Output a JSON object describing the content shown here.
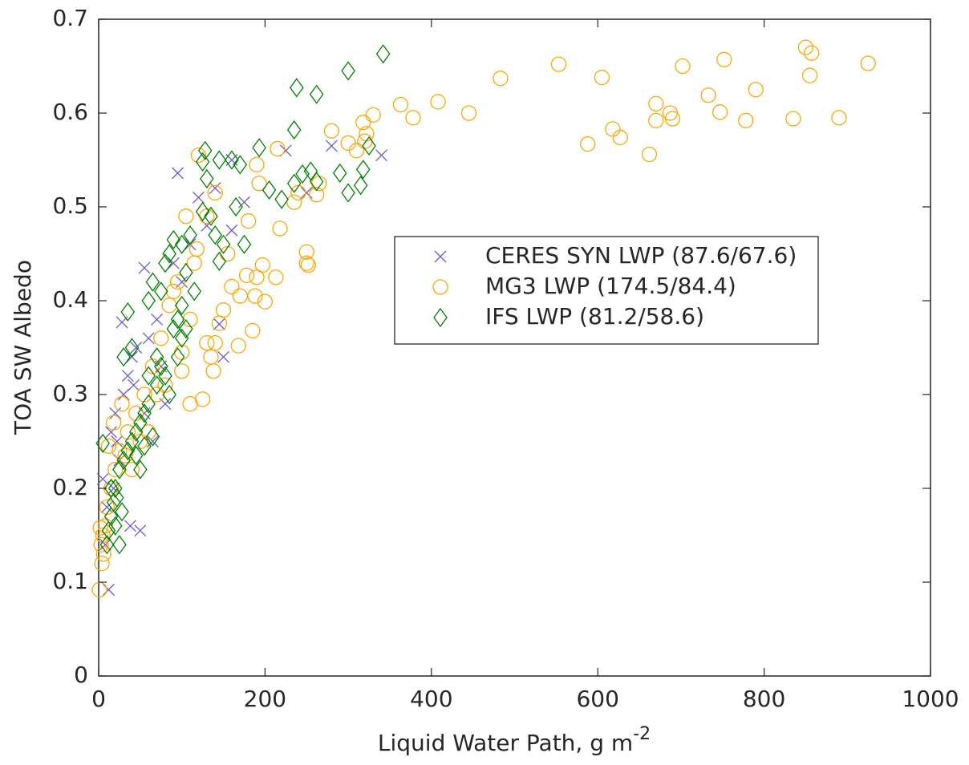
{
  "chart_data": {
    "type": "scatter",
    "xlabel": "Liquid Water Path, g m",
    "xlabel_superscript": "-2",
    "ylabel": "TOA SW Albedo",
    "xlim": [
      0,
      1000
    ],
    "xticks": [
      0,
      200,
      400,
      600,
      800,
      1000
    ],
    "ylim": [
      0,
      0.7
    ],
    "yticks": [
      0,
      0.1,
      0.2,
      0.3,
      0.4,
      0.5,
      0.6,
      0.7
    ],
    "grid": false,
    "legend": "upper right",
    "series": [
      {
        "name": "CERES SYN LWP (87.6/67.6)",
        "color": "#6a5acd",
        "marker": "x",
        "x": [
          95,
          120,
          130,
          140,
          160,
          175,
          225,
          280,
          340,
          250,
          145,
          160,
          150,
          55,
          28,
          40,
          50,
          12,
          5,
          15,
          20,
          30,
          35,
          45,
          60,
          70,
          80,
          90,
          100,
          25,
          10,
          18,
          65,
          38,
          8,
          22,
          42,
          55,
          75,
          110
        ],
        "values": [
          0.536,
          0.51,
          0.48,
          0.52,
          0.55,
          0.505,
          0.56,
          0.565,
          0.555,
          0.515,
          0.375,
          0.475,
          0.34,
          0.435,
          0.377,
          0.34,
          0.155,
          0.092,
          0.21,
          0.26,
          0.28,
          0.3,
          0.32,
          0.35,
          0.36,
          0.38,
          0.29,
          0.44,
          0.42,
          0.23,
          0.18,
          0.2,
          0.25,
          0.16,
          0.14,
          0.25,
          0.31,
          0.28,
          0.33,
          0.46
        ]
      },
      {
        "name": "MG3 LWP (174.5/84.4)",
        "color": "#ffa500",
        "marker": "o",
        "x": [
          363,
          378,
          408,
          445,
          483,
          553,
          588,
          605,
          618,
          627,
          662,
          670,
          670,
          687,
          690,
          702,
          733,
          747,
          752,
          778,
          790,
          835,
          850,
          855,
          857,
          890,
          925,
          280,
          300,
          310,
          318,
          322,
          330,
          320,
          215,
          218,
          235,
          240,
          250,
          250,
          252,
          262,
          265,
          190,
          193,
          197,
          190,
          185,
          180,
          178,
          188,
          200,
          213,
          168,
          170,
          160,
          150,
          145,
          140,
          138,
          135,
          125,
          110,
          120,
          118,
          115,
          130,
          140,
          105,
          100,
          95,
          90,
          85,
          75,
          65,
          55,
          45,
          35,
          28,
          25,
          20,
          15,
          10,
          8,
          5,
          3,
          1,
          4,
          2,
          6,
          12,
          18,
          32,
          40,
          50,
          60,
          70,
          80,
          100,
          110,
          130,
          155
        ],
        "values": [
          0.609,
          0.595,
          0.612,
          0.6,
          0.637,
          0.652,
          0.567,
          0.638,
          0.583,
          0.574,
          0.556,
          0.61,
          0.592,
          0.6,
          0.594,
          0.65,
          0.619,
          0.601,
          0.657,
          0.592,
          0.625,
          0.594,
          0.67,
          0.64,
          0.664,
          0.595,
          0.653,
          0.581,
          0.568,
          0.56,
          0.59,
          0.578,
          0.598,
          0.57,
          0.562,
          0.477,
          0.505,
          0.515,
          0.44,
          0.452,
          0.438,
          0.513,
          0.525,
          0.545,
          0.525,
          0.438,
          0.425,
          0.368,
          0.485,
          0.427,
          0.405,
          0.399,
          0.425,
          0.352,
          0.405,
          0.415,
          0.39,
          0.376,
          0.355,
          0.325,
          0.34,
          0.295,
          0.29,
          0.555,
          0.455,
          0.44,
          0.49,
          0.515,
          0.49,
          0.325,
          0.42,
          0.41,
          0.395,
          0.36,
          0.33,
          0.3,
          0.28,
          0.26,
          0.29,
          0.24,
          0.22,
          0.2,
          0.18,
          0.16,
          0.15,
          0.14,
          0.092,
          0.12,
          0.158,
          0.13,
          0.245,
          0.27,
          0.235,
          0.22,
          0.25,
          0.26,
          0.3,
          0.31,
          0.345,
          0.38,
          0.355,
          0.45
        ]
      },
      {
        "name": "IFS LWP (81.2/58.6)",
        "color": "#008000",
        "marker": "d",
        "x": [
          342,
          300,
          262,
          238,
          235,
          193,
          160,
          145,
          128,
          125,
          130,
          170,
          205,
          220,
          235,
          245,
          255,
          262,
          290,
          300,
          315,
          318,
          325,
          175,
          165,
          145,
          150,
          135,
          125,
          140,
          110,
          100,
          90,
          85,
          80,
          75,
          65,
          60,
          105,
          115,
          95,
          100,
          90,
          35,
          40,
          30,
          75,
          80,
          70,
          60,
          55,
          50,
          45,
          40,
          35,
          30,
          25,
          20,
          18,
          15,
          12,
          10,
          25,
          20,
          28,
          22,
          15,
          5,
          50,
          45,
          55,
          65,
          85,
          95,
          100,
          105,
          60,
          70
        ],
        "values": [
          0.663,
          0.645,
          0.62,
          0.627,
          0.582,
          0.563,
          0.55,
          0.55,
          0.56,
          0.548,
          0.53,
          0.545,
          0.518,
          0.508,
          0.525,
          0.535,
          0.538,
          0.527,
          0.536,
          0.515,
          0.523,
          0.54,
          0.565,
          0.46,
          0.5,
          0.442,
          0.46,
          0.49,
          0.495,
          0.47,
          0.47,
          0.46,
          0.465,
          0.45,
          0.44,
          0.41,
          0.42,
          0.4,
          0.43,
          0.41,
          0.38,
          0.395,
          0.37,
          0.388,
          0.35,
          0.34,
          0.33,
          0.32,
          0.31,
          0.29,
          0.28,
          0.27,
          0.26,
          0.25,
          0.24,
          0.23,
          0.22,
          0.2,
          0.185,
          0.17,
          0.155,
          0.14,
          0.14,
          0.16,
          0.175,
          0.19,
          0.2,
          0.248,
          0.22,
          0.235,
          0.245,
          0.255,
          0.3,
          0.34,
          0.36,
          0.37,
          0.32,
          0.34
        ]
      }
    ]
  }
}
